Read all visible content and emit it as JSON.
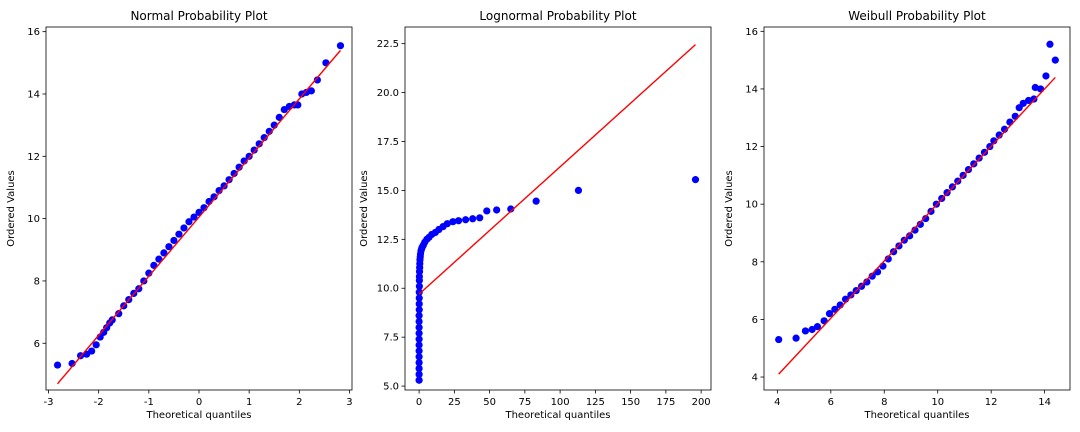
{
  "chart_data": [
    {
      "type": "scatter",
      "title": "Normal Probability Plot",
      "xlabel": "Theoretical quantiles",
      "ylabel": "Ordered Values",
      "xlim": [
        -3.05,
        3.05
      ],
      "ylim": [
        4.5,
        16.15
      ],
      "xticks": [
        -3,
        -2,
        -1,
        0,
        1,
        2,
        3
      ],
      "yticks": [
        6,
        8,
        10,
        12,
        14,
        16
      ],
      "grid": false,
      "series": [
        {
          "kind": "points",
          "color": "#0000ff",
          "x": [
            -2.82,
            -2.53,
            -2.36,
            -2.24,
            -2.14,
            -2.05,
            -1.97,
            -1.9,
            -1.84,
            -1.78,
            -1.73,
            -1.6,
            -1.5,
            -1.4,
            -1.3,
            -1.2,
            -1.1,
            -1.0,
            -0.9,
            -0.8,
            -0.7,
            -0.6,
            -0.5,
            -0.4,
            -0.3,
            -0.2,
            -0.1,
            0.0,
            0.1,
            0.2,
            0.3,
            0.4,
            0.5,
            0.6,
            0.7,
            0.8,
            0.9,
            1.0,
            1.1,
            1.2,
            1.3,
            1.4,
            1.5,
            1.6,
            1.7,
            1.8,
            1.9,
            1.97,
            2.05,
            2.14,
            2.24,
            2.36,
            2.53,
            2.82
          ],
          "y": [
            5.3,
            5.35,
            5.6,
            5.65,
            5.75,
            5.95,
            6.2,
            6.35,
            6.5,
            6.65,
            6.75,
            6.95,
            7.2,
            7.4,
            7.6,
            7.75,
            8.0,
            8.25,
            8.5,
            8.7,
            8.9,
            9.1,
            9.3,
            9.5,
            9.7,
            9.9,
            10.05,
            10.2,
            10.35,
            10.55,
            10.7,
            10.9,
            11.05,
            11.25,
            11.45,
            11.65,
            11.85,
            12.0,
            12.2,
            12.4,
            12.6,
            12.8,
            13.0,
            13.25,
            13.5,
            13.6,
            13.65,
            13.65,
            14.0,
            14.05,
            14.1,
            14.45,
            15.0,
            15.55
          ]
        },
        {
          "kind": "line",
          "color": "#ff0000",
          "x": [
            -2.82,
            2.82
          ],
          "y": [
            4.7,
            15.4
          ]
        }
      ]
    },
    {
      "type": "scatter",
      "title": "Lognormal Probability Plot",
      "xlabel": "Theoretical quantiles",
      "ylabel": "Ordered Values",
      "xlim": [
        -10,
        207
      ],
      "ylim": [
        4.8,
        23.35
      ],
      "xticks": [
        0,
        25,
        50,
        75,
        100,
        125,
        150,
        175,
        200
      ],
      "yticks": [
        5.0,
        7.5,
        10.0,
        12.5,
        15.0,
        17.5,
        20.0,
        22.5
      ],
      "grid": false,
      "series": [
        {
          "kind": "points",
          "color": "#0000ff",
          "x": [
            0.0,
            0.0,
            0.0,
            0.0,
            0.0,
            0.0,
            0.0,
            0.0,
            0.0,
            0.0,
            0.0,
            0.0,
            0.1,
            0.1,
            0.1,
            0.1,
            0.2,
            0.2,
            0.2,
            0.3,
            0.4,
            0.5,
            0.6,
            0.8,
            1.0,
            1.3,
            1.7,
            2.2,
            3.0,
            4.0,
            5.5,
            7.0,
            9.0,
            11.5,
            14.0,
            17.0,
            20.0,
            24.0,
            28.0,
            33.0,
            38.0,
            43.0,
            48.0,
            55.0,
            65.0,
            83.0,
            113.0,
            196.0
          ],
          "y": [
            5.3,
            5.6,
            5.9,
            6.2,
            6.5,
            6.8,
            7.1,
            7.4,
            7.7,
            8.0,
            8.3,
            8.6,
            8.9,
            9.2,
            9.5,
            9.8,
            10.1,
            10.4,
            10.6,
            10.85,
            11.05,
            11.25,
            11.45,
            11.6,
            11.75,
            11.9,
            12.0,
            12.1,
            12.2,
            12.35,
            12.5,
            12.6,
            12.75,
            12.85,
            13.0,
            13.15,
            13.3,
            13.4,
            13.45,
            13.5,
            13.55,
            13.6,
            13.95,
            14.0,
            14.05,
            14.45,
            15.0,
            15.55
          ]
        },
        {
          "kind": "line",
          "color": "#ff0000",
          "x": [
            0,
            196
          ],
          "y": [
            9.7,
            22.45
          ]
        }
      ]
    },
    {
      "type": "scatter",
      "title": "Weibull Probability Plot",
      "xlabel": "",
      "ylabel": "Ordered Values",
      "xlim": [
        3.5,
        14.95
      ],
      "ylim": [
        3.55,
        16.15
      ],
      "xticks": [
        4,
        6,
        8,
        10,
        12,
        14
      ],
      "yticks": [
        4,
        6,
        8,
        10,
        12,
        14,
        16
      ],
      "grid": false,
      "series": [
        {
          "kind": "points",
          "color": "#0000ff",
          "x": [
            4.05,
            4.7,
            5.05,
            5.3,
            5.5,
            5.75,
            5.95,
            6.15,
            6.35,
            6.55,
            6.75,
            6.95,
            7.15,
            7.35,
            7.55,
            7.75,
            7.95,
            8.15,
            8.35,
            8.55,
            8.75,
            8.95,
            9.15,
            9.35,
            9.55,
            9.75,
            9.95,
            10.15,
            10.35,
            10.55,
            10.75,
            10.95,
            11.15,
            11.35,
            11.55,
            11.75,
            11.95,
            12.1,
            12.3,
            12.5,
            12.7,
            12.9,
            13.05,
            13.2,
            13.4,
            13.6,
            13.85,
            14.05,
            14.4
          ],
          "y": [
            5.3,
            5.35,
            5.6,
            5.65,
            5.75,
            5.95,
            6.2,
            6.35,
            6.5,
            6.7,
            6.85,
            7.0,
            7.15,
            7.3,
            7.5,
            7.65,
            7.85,
            8.1,
            8.35,
            8.55,
            8.75,
            8.9,
            9.1,
            9.3,
            9.5,
            9.75,
            10.0,
            10.2,
            10.4,
            10.6,
            10.8,
            11.0,
            11.2,
            11.4,
            11.6,
            11.8,
            12.0,
            12.2,
            12.4,
            12.6,
            12.85,
            13.05,
            13.35,
            13.5,
            13.6,
            13.65,
            14.0,
            14.45,
            15.0
          ],
          "extra_x": [
            13.65,
            14.2
          ],
          "extra_y": [
            14.05,
            15.55
          ]
        },
        {
          "kind": "line",
          "color": "#ff0000",
          "x": [
            4.05,
            14.4
          ],
          "y": [
            4.1,
            14.4
          ]
        }
      ]
    }
  ],
  "weibull_xlabel": "Theoretical quantiles"
}
